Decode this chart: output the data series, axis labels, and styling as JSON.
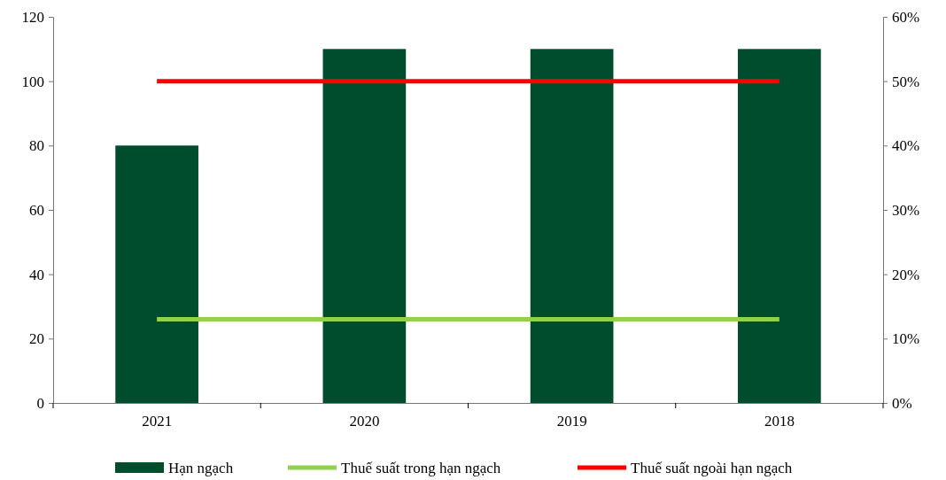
{
  "chart_data": {
    "type": "bar",
    "categories": [
      "2021",
      "2020",
      "2019",
      "2018"
    ],
    "series": [
      {
        "name": "Hạn ngạch",
        "color": "#004d2e",
        "values": [
          80,
          110,
          110,
          110
        ]
      },
      {
        "name": "Thuế suất trong hạn ngạch",
        "type": "line",
        "axis": "y2",
        "color": "#92d050",
        "values": [
          13,
          13,
          13,
          13
        ]
      },
      {
        "name": "Thuế suất ngoài hạn ngạch",
        "type": "line",
        "axis": "y2",
        "color": "#ff0000",
        "values": [
          50,
          50,
          50,
          50
        ]
      }
    ],
    "ylim": [
      0,
      120
    ],
    "yticks": [
      0,
      20,
      40,
      60,
      80,
      100,
      120
    ],
    "y2lim": [
      0,
      60
    ],
    "y2ticks": [
      {
        "value": 0,
        "label": "0%"
      },
      {
        "value": 10,
        "label": "10%"
      },
      {
        "value": 20,
        "label": "20%"
      },
      {
        "value": 30,
        "label": "30%"
      },
      {
        "value": 40,
        "label": "40%"
      },
      {
        "value": 50,
        "label": "50%"
      },
      {
        "value": 60,
        "label": "60%"
      }
    ],
    "grid": false,
    "legend": "bottom",
    "marker": "none",
    "line_style": "solid"
  }
}
